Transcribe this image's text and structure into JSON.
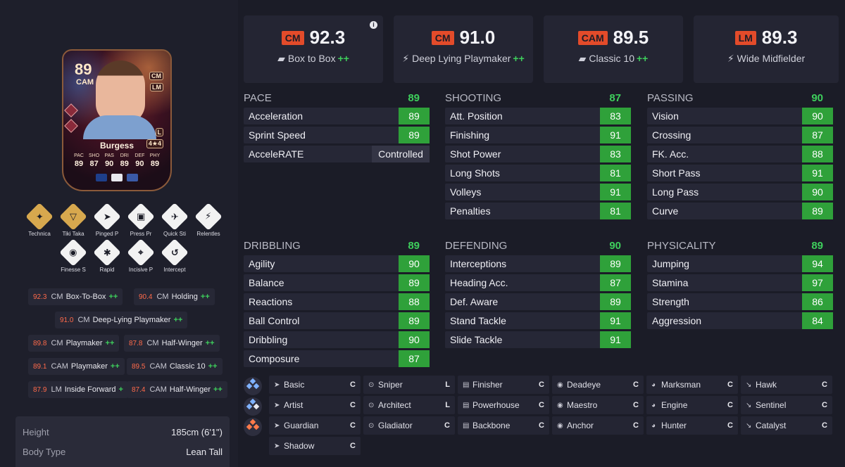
{
  "card": {
    "rating": "89",
    "position": "CAM",
    "alt_positions": [
      "CM",
      "LM"
    ],
    "foot": "L",
    "skill_weak": "4★4",
    "name": "Burgess",
    "stat_labels": [
      "PAC",
      "SHO",
      "PAS",
      "DRI",
      "DEF",
      "PHY"
    ],
    "stat_values": [
      "89",
      "87",
      "90",
      "89",
      "90",
      "89"
    ]
  },
  "playstyles": [
    {
      "label": "Technica",
      "icon": "technical-icon",
      "plus": true
    },
    {
      "label": "Tiki Taka",
      "icon": "tiki-taka-icon",
      "plus": true
    },
    {
      "label": "Pinged P",
      "icon": "pinged-pass-icon",
      "plus": false
    },
    {
      "label": "Press Pr",
      "icon": "press-proven-icon",
      "plus": false
    },
    {
      "label": "Quick Sti",
      "icon": "quick-step-icon",
      "plus": false
    },
    {
      "label": "Relentles",
      "icon": "relentless-icon",
      "plus": false
    },
    {
      "label": "Finesse S",
      "icon": "finesse-shot-icon",
      "plus": false
    },
    {
      "label": "Rapid",
      "icon": "rapid-icon",
      "plus": false
    },
    {
      "label": "Incisive P",
      "icon": "incisive-pass-icon",
      "plus": false
    },
    {
      "label": "Intercept",
      "icon": "intercept-icon",
      "plus": false
    }
  ],
  "roles": [
    {
      "value": "92.3",
      "pos": "CM",
      "name": "Box-To-Box",
      "pp": "++"
    },
    {
      "value": "90.4",
      "pos": "CM",
      "name": "Holding",
      "pp": "++"
    },
    {
      "value": "91.0",
      "pos": "CM",
      "name": "Deep-Lying Playmaker",
      "pp": "++"
    },
    {
      "value": "89.8",
      "pos": "CM",
      "name": "Playmaker",
      "pp": "++"
    },
    {
      "value": "87.8",
      "pos": "CM",
      "name": "Half-Winger",
      "pp": "++"
    },
    {
      "value": "89.1",
      "pos": "CAM",
      "name": "Playmaker",
      "pp": "++"
    },
    {
      "value": "89.5",
      "pos": "CAM",
      "name": "Classic 10",
      "pp": "++"
    },
    {
      "value": "87.9",
      "pos": "LM",
      "name": "Inside Forward",
      "pp": "+"
    },
    {
      "value": "87.4",
      "pos": "CAM",
      "name": "Half-Winger",
      "pp": "++"
    }
  ],
  "info": [
    {
      "key": "Height",
      "value": "185cm (6'1\")"
    },
    {
      "key": "Body Type",
      "value": "Lean Tall"
    }
  ],
  "top_roles": [
    {
      "pos": "CM",
      "value": "92.3",
      "name": "Box to Box",
      "pp": "++",
      "icon": "boot-icon"
    },
    {
      "pos": "CM",
      "value": "91.0",
      "name": "Deep Lying Playmaker",
      "pp": "++",
      "icon": "bolt-icon"
    },
    {
      "pos": "CAM",
      "value": "89.5",
      "name": "Classic 10",
      "pp": "++",
      "icon": "boot-icon"
    },
    {
      "pos": "LM",
      "value": "89.3",
      "name": "Wide Midfielder",
      "pp": "",
      "icon": "bolt-icon"
    }
  ],
  "stats": {
    "pace": {
      "title": "PACE",
      "total": "89",
      "rows": [
        {
          "name": "Acceleration",
          "value": "89"
        },
        {
          "name": "Sprint Speed",
          "value": "89"
        },
        {
          "name": "AcceleRATE",
          "value": "Controlled"
        }
      ]
    },
    "shooting": {
      "title": "SHOOTING",
      "total": "87",
      "rows": [
        {
          "name": "Att. Position",
          "value": "83"
        },
        {
          "name": "Finishing",
          "value": "91"
        },
        {
          "name": "Shot Power",
          "value": "83"
        },
        {
          "name": "Long Shots",
          "value": "81"
        },
        {
          "name": "Volleys",
          "value": "91"
        },
        {
          "name": "Penalties",
          "value": "81"
        }
      ]
    },
    "passing": {
      "title": "PASSING",
      "total": "90",
      "rows": [
        {
          "name": "Vision",
          "value": "90"
        },
        {
          "name": "Crossing",
          "value": "87"
        },
        {
          "name": "FK. Acc.",
          "value": "88"
        },
        {
          "name": "Short Pass",
          "value": "91"
        },
        {
          "name": "Long Pass",
          "value": "90"
        },
        {
          "name": "Curve",
          "value": "89"
        }
      ]
    },
    "dribbling": {
      "title": "DRIBBLING",
      "total": "89",
      "rows": [
        {
          "name": "Agility",
          "value": "90"
        },
        {
          "name": "Balance",
          "value": "89"
        },
        {
          "name": "Reactions",
          "value": "88"
        },
        {
          "name": "Ball Control",
          "value": "89"
        },
        {
          "name": "Dribbling",
          "value": "90"
        },
        {
          "name": "Composure",
          "value": "87"
        }
      ]
    },
    "defending": {
      "title": "DEFENDING",
      "total": "90",
      "rows": [
        {
          "name": "Interceptions",
          "value": "89"
        },
        {
          "name": "Heading Acc.",
          "value": "87"
        },
        {
          "name": "Def. Aware",
          "value": "89"
        },
        {
          "name": "Stand Tackle",
          "value": "91"
        },
        {
          "name": "Slide Tackle",
          "value": "91"
        }
      ]
    },
    "physicality": {
      "title": "PHYSICALITY",
      "total": "89",
      "rows": [
        {
          "name": "Jumping",
          "value": "94"
        },
        {
          "name": "Stamina",
          "value": "97"
        },
        {
          "name": "Strength",
          "value": "86"
        },
        {
          "name": "Aggression",
          "value": "84"
        }
      ]
    }
  },
  "chem_styles": [
    [
      {
        "name": "Basic",
        "level": "C"
      },
      {
        "name": "Sniper",
        "level": "L"
      },
      {
        "name": "Finisher",
        "level": "C"
      },
      {
        "name": "Deadeye",
        "level": "C"
      },
      {
        "name": "Marksman",
        "level": "C"
      },
      {
        "name": "Hawk",
        "level": "C"
      }
    ],
    [
      {
        "name": "Artist",
        "level": "C"
      },
      {
        "name": "Architect",
        "level": "L"
      },
      {
        "name": "Powerhouse",
        "level": "C"
      },
      {
        "name": "Maestro",
        "level": "C"
      },
      {
        "name": "Engine",
        "level": "C"
      },
      {
        "name": "Sentinel",
        "level": "C"
      }
    ],
    [
      {
        "name": "Guardian",
        "level": "C"
      },
      {
        "name": "Gladiator",
        "level": "C"
      },
      {
        "name": "Backbone",
        "level": "C"
      },
      {
        "name": "Anchor",
        "level": "C"
      },
      {
        "name": "Hunter",
        "level": "C"
      },
      {
        "name": "Catalyst",
        "level": "C"
      }
    ],
    [
      {
        "name": "Shadow",
        "level": "C"
      }
    ]
  ],
  "colors": {
    "accent_green": "#2fa13a",
    "position_badge": "#e34b2a",
    "role_value": "#ff6a4a"
  }
}
